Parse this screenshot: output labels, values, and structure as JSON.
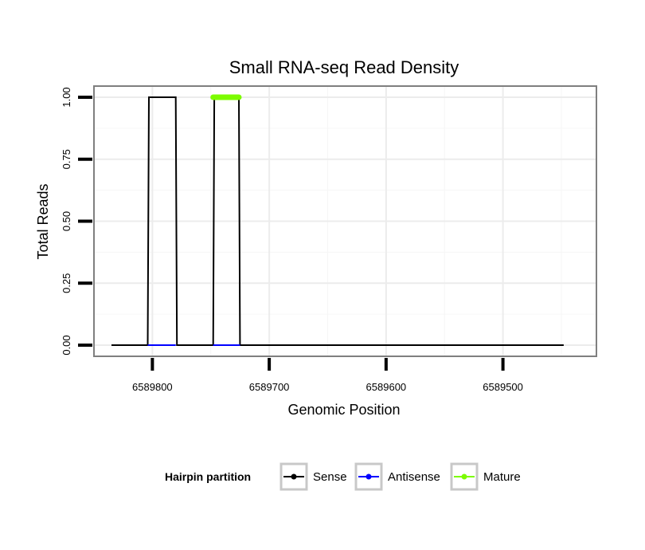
{
  "chart_data": {
    "type": "line",
    "title": "Small RNA-seq Read Density",
    "xlabel": "Genomic Position",
    "ylabel": "Total Reads",
    "x_reversed": true,
    "xlim": [
      6589850,
      6589420
    ],
    "ylim": [
      -0.045,
      1.045
    ],
    "x_ticks": [
      6589800,
      6589700,
      6589600,
      6589500
    ],
    "x_tick_labels": [
      "6589800",
      "6589700",
      "6589600",
      "6589500"
    ],
    "y_ticks": [
      0,
      0.25,
      0.5,
      0.75,
      1
    ],
    "y_tick_labels": [
      "0.00",
      "0.25",
      "0.50",
      "0.75",
      "1.00"
    ],
    "grid": true,
    "legend": {
      "title": "Hairpin partition",
      "position": "bottom",
      "entries": [
        {
          "label": "Sense",
          "color": "#000000"
        },
        {
          "label": "Antisense",
          "color": "#0000ff"
        },
        {
          "label": "Mature",
          "color": "#7cfc00"
        }
      ]
    },
    "series": [
      {
        "name": "Sense",
        "color": "#000000",
        "x": [
          6589835,
          6589804,
          6589803,
          6589780,
          6589779,
          6589748,
          6589747,
          6589726,
          6589725,
          6589448
        ],
        "y": [
          0,
          0,
          1,
          1,
          0,
          0,
          1,
          1,
          0,
          0
        ]
      },
      {
        "name": "Antisense",
        "color": "#0000ff",
        "x": [
          6589804,
          6589780,
          6589748,
          6589725
        ],
        "y": [
          0,
          0,
          0,
          0
        ],
        "segments": [
          [
            0,
            1
          ],
          [
            2,
            3
          ]
        ]
      },
      {
        "name": "Mature",
        "color": "#7cfc00",
        "x": [
          6589748,
          6589726
        ],
        "y": [
          1,
          1
        ]
      }
    ]
  }
}
